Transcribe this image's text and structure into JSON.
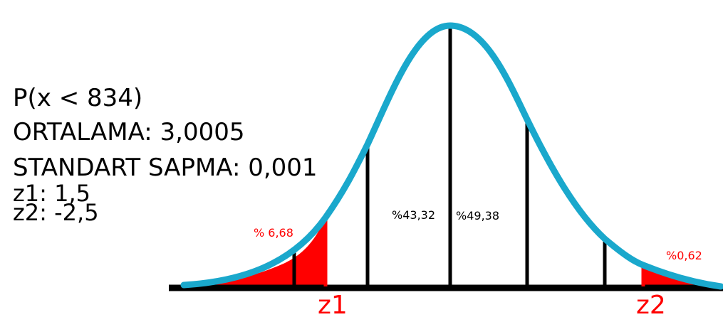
{
  "info": {
    "probability": "P(x < 834)",
    "mean": "ORTALAMA: 3,0005",
    "std": "STANDART SAPMA: 0,001",
    "z1": "z1: 1,5",
    "z2": "z2: -2,5"
  },
  "labels": {
    "left_tail": "% 6,68",
    "right_tail": "%0,62",
    "center_left": "%43,32",
    "center_right": "%49,38",
    "z1_axis": "z1",
    "z2_axis": "z2"
  },
  "colors": {
    "curve": "#1aa8cc",
    "shade": "#ff0000",
    "axis": "#000000",
    "label_red": "#ff0000"
  }
}
